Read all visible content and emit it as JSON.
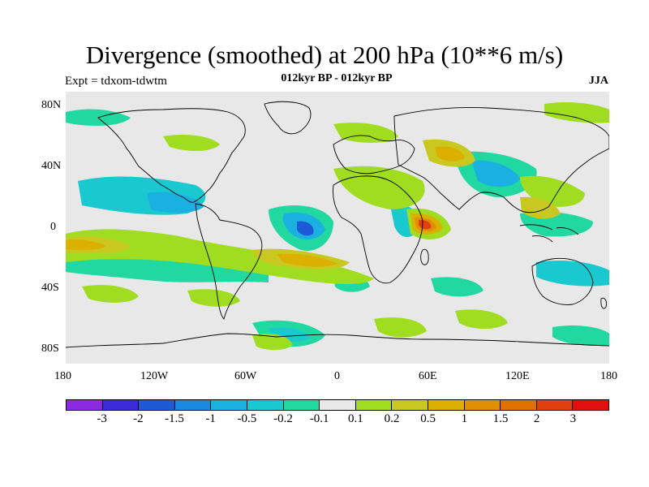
{
  "title": "Divergence (smoothed) at 200 hPa (10**6 m/s)",
  "subtitle": "012kyr BP - 012kyr BP",
  "left_label": "Expt = tdxom-tdwtm",
  "right_label": "JJA",
  "lat_labels": [
    "80N",
    "40N",
    "0",
    "40S",
    "80S"
  ],
  "lon_labels": [
    "180",
    "120W",
    "60W",
    "0",
    "60E",
    "120E",
    "180"
  ],
  "colorbar": {
    "colors": [
      "#8a2be2",
      "#3a2ad8",
      "#1e5ad6",
      "#1a8ae0",
      "#1ab0e0",
      "#1ac8d0",
      "#20d8a0",
      "#e8e8e8",
      "#a0dc20",
      "#c8c820",
      "#dcb000",
      "#e09000",
      "#e07000",
      "#e04010",
      "#e01010"
    ],
    "labels": [
      "-3",
      "-2",
      "-1.5",
      "-1",
      "-0.5",
      "-0.2",
      "-0.1",
      "0.1",
      "0.2",
      "0.5",
      "1",
      "1.5",
      "2",
      "3"
    ]
  },
  "map_colors": {
    "background": "#e8e8e8",
    "coast": "#000000"
  }
}
